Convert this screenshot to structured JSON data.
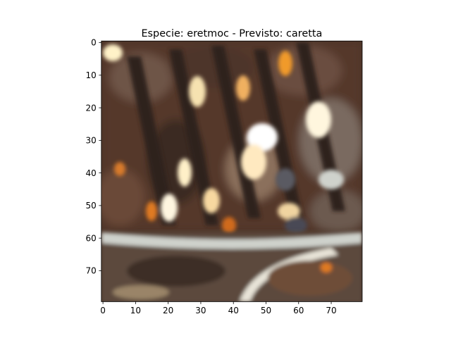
{
  "chart_data": {
    "type": "image",
    "title": "Especie: eretmoc - Previsto: caretta",
    "image_description_class_true": "eretmoc",
    "image_description_class_pred": "caretta",
    "image_size": [
      80,
      80
    ],
    "xlim": [
      -0.5,
      79.5
    ],
    "ylim": [
      79.5,
      -0.5
    ],
    "x_ticks": [
      0,
      10,
      20,
      30,
      40,
      50,
      60,
      70
    ],
    "y_ticks": [
      0,
      10,
      20,
      30,
      40,
      50,
      60,
      70
    ],
    "xlabel": "",
    "ylabel": ""
  },
  "colors": {
    "background": "#ffffff",
    "axis": "#000000",
    "dark_brown": "#3a2a22",
    "mid_brown": "#6a4a38",
    "orange": "#d06a1c",
    "bright": "#fff2c8",
    "grey": "#8a8682",
    "light_grey": "#cfd2cc"
  }
}
